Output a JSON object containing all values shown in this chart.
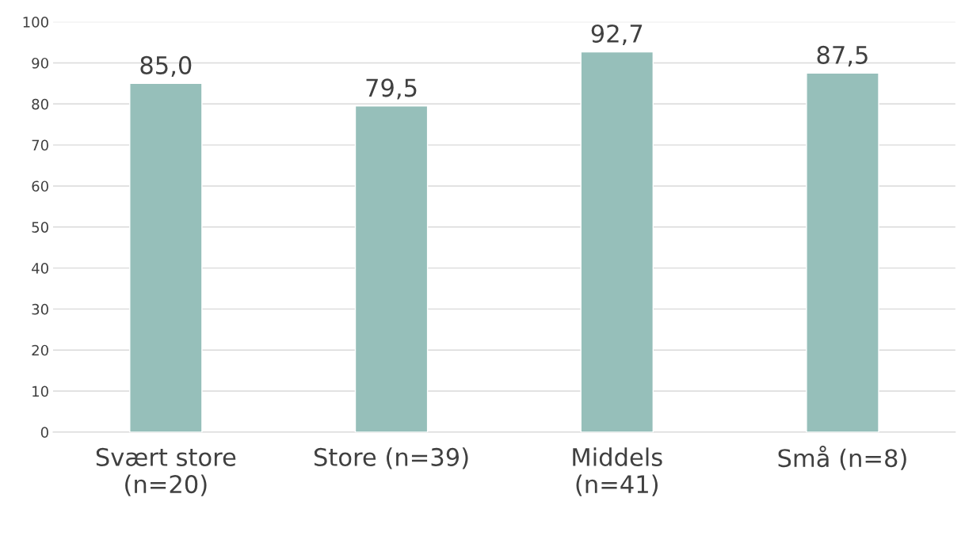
{
  "chart_data": {
    "type": "bar",
    "categories": [
      "Svært store (n=20)",
      "Store (n=39)",
      "Middels (n=41)",
      "Små (n=8)"
    ],
    "values": [
      85.0,
      79.5,
      92.7,
      87.5
    ],
    "value_labels": [
      "85,0",
      "79,5",
      "92,7",
      "87,5"
    ],
    "color": "#96bfba",
    "ylim": [
      0,
      100
    ],
    "yticks": [
      0,
      10,
      20,
      30,
      40,
      50,
      60,
      70,
      80,
      90,
      100
    ],
    "grid": "y",
    "legend": false
  }
}
